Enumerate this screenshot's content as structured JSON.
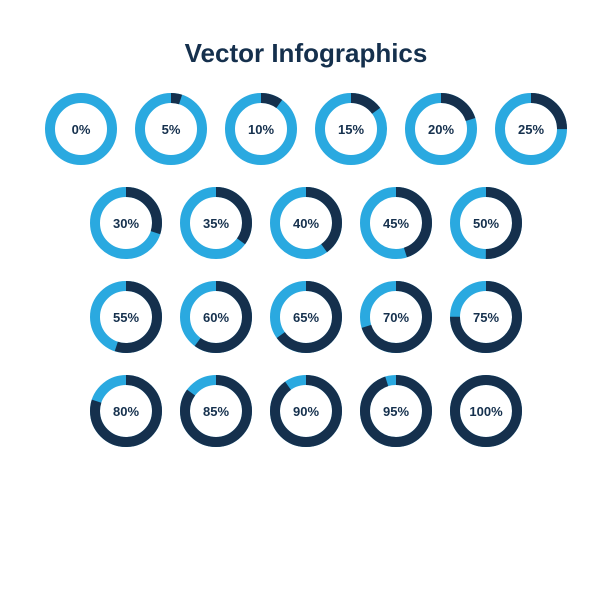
{
  "title": {
    "text": "Vector Infographics",
    "fontsize": 26,
    "color": "#15304d"
  },
  "layout": {
    "columns_row1": 6,
    "columns_other": 5,
    "col_gap": 18,
    "row_gap": 22,
    "top_margin": 24,
    "indent_other_rows": 40
  },
  "ring_style": {
    "outer_diameter": 72,
    "stroke_width": 10,
    "track_color": "#2aa9e0",
    "fill_color": "#15304d",
    "label_color": "#15304d",
    "label_fontsize": 13,
    "background": "#ffffff"
  },
  "rings": [
    {
      "percent": 0,
      "label": "0%"
    },
    {
      "percent": 5,
      "label": "5%"
    },
    {
      "percent": 10,
      "label": "10%"
    },
    {
      "percent": 15,
      "label": "15%"
    },
    {
      "percent": 20,
      "label": "20%"
    },
    {
      "percent": 25,
      "label": "25%"
    },
    {
      "percent": 30,
      "label": "30%"
    },
    {
      "percent": 35,
      "label": "35%"
    },
    {
      "percent": 40,
      "label": "40%"
    },
    {
      "percent": 45,
      "label": "45%"
    },
    {
      "percent": 50,
      "label": "50%"
    },
    {
      "percent": 55,
      "label": "55%"
    },
    {
      "percent": 60,
      "label": "60%"
    },
    {
      "percent": 65,
      "label": "65%"
    },
    {
      "percent": 70,
      "label": "70%"
    },
    {
      "percent": 75,
      "label": "75%"
    },
    {
      "percent": 80,
      "label": "80%"
    },
    {
      "percent": 85,
      "label": "85%"
    },
    {
      "percent": 90,
      "label": "90%"
    },
    {
      "percent": 95,
      "label": "95%"
    },
    {
      "percent": 100,
      "label": "100%"
    }
  ]
}
